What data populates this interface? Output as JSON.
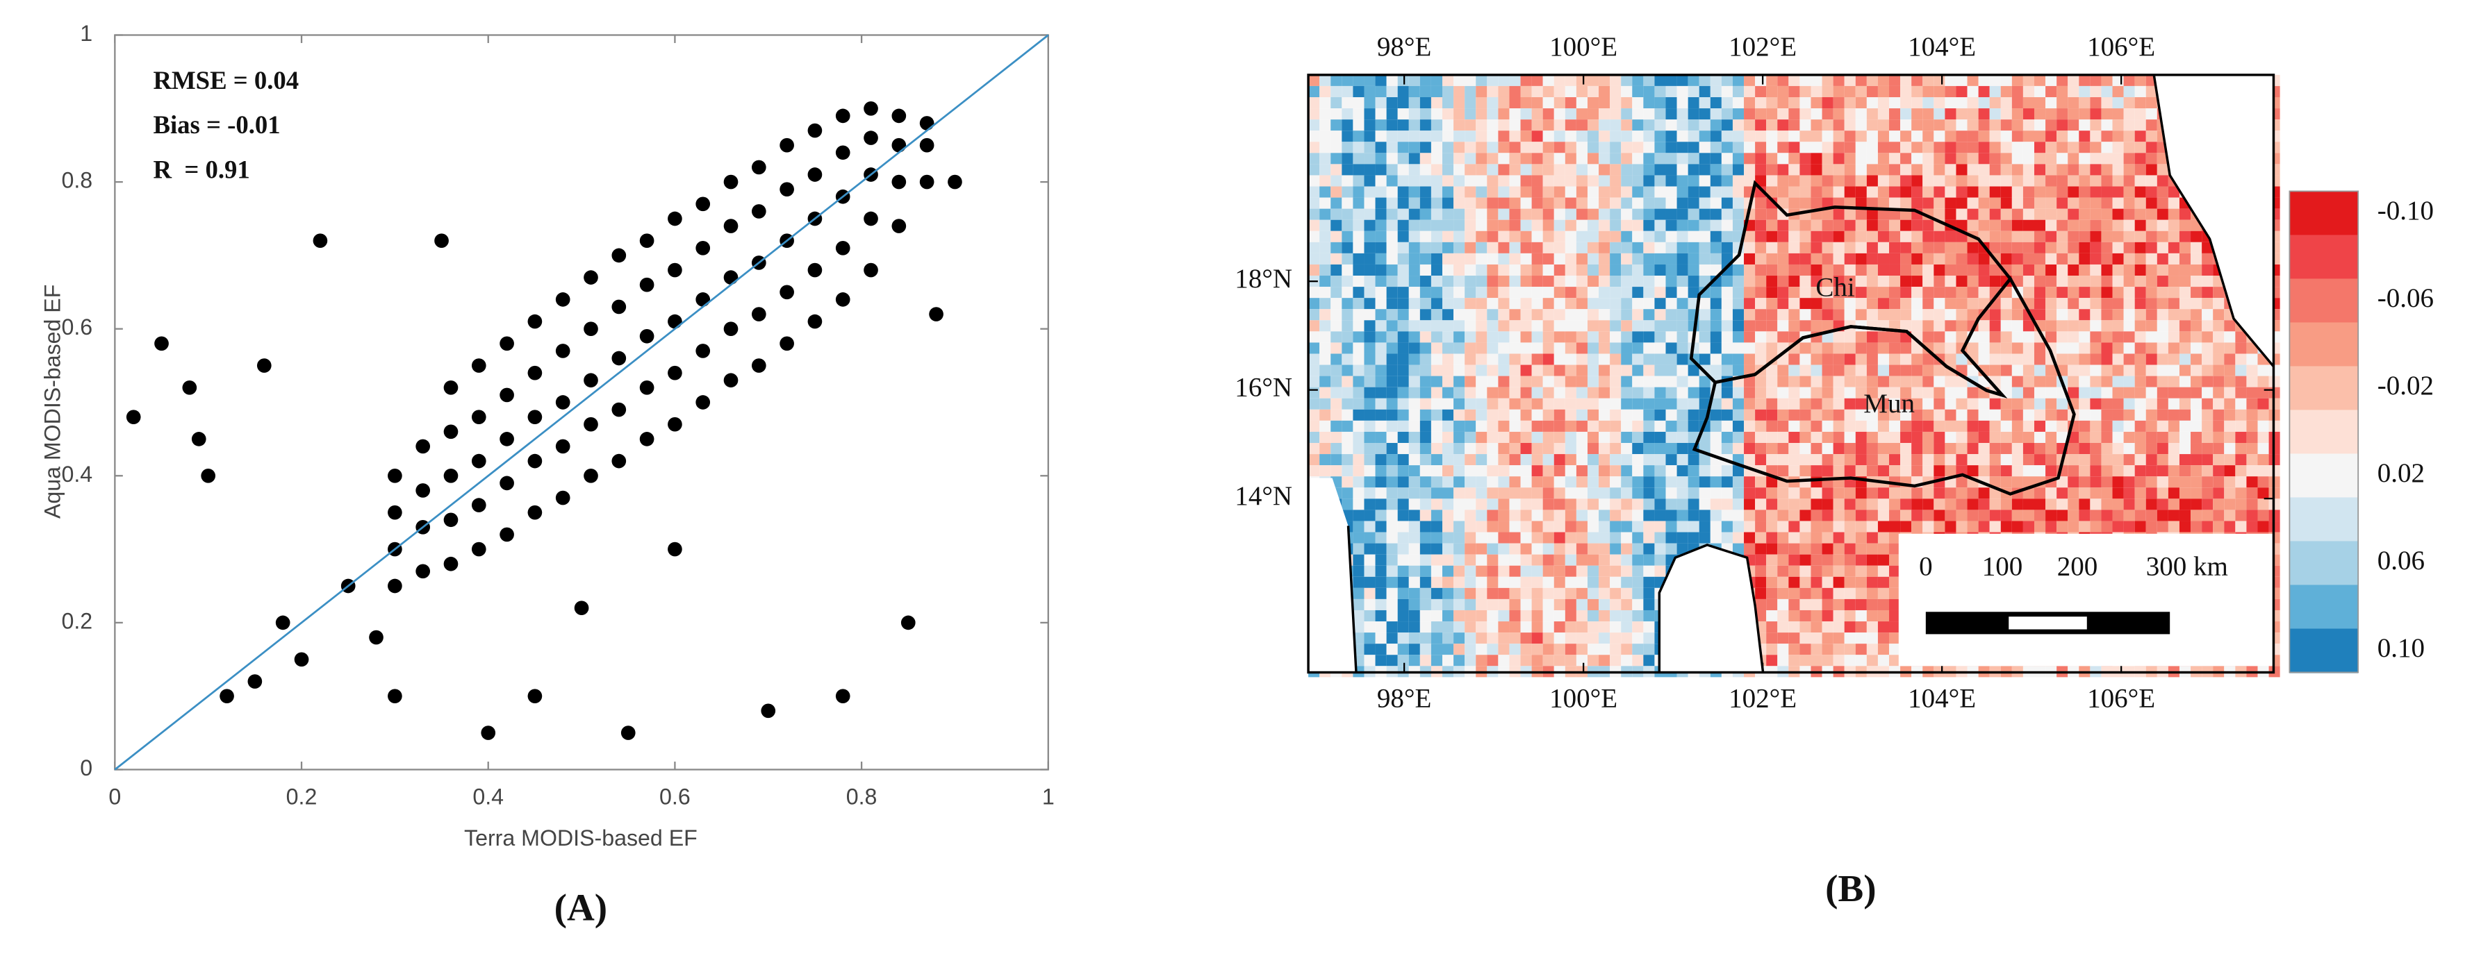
{
  "chart_data": [
    {
      "type": "scatter",
      "panel_label": "(A)",
      "x_label": "Terra MODIS-based EF",
      "y_label": "Aqua MODIS-based EF",
      "annotations": [
        "RMSE = 0.04",
        "Bias = -0.01",
        "R  = 0.91"
      ],
      "xlim": [
        0,
        1
      ],
      "ylim": [
        0,
        1
      ],
      "xticks": [
        0,
        0.2,
        0.4,
        0.6,
        0.8,
        1
      ],
      "yticks": [
        0,
        0.2,
        0.4,
        0.6,
        0.8,
        1
      ],
      "point_color": "#000000",
      "line_color": "#3b8fc4",
      "series": [
        {
          "name": null,
          "x": [
            0.3,
            0.3,
            0.3,
            0.3,
            0.33,
            0.33,
            0.33,
            0.33,
            0.36,
            0.36,
            0.36,
            0.36,
            0.36,
            0.39,
            0.39,
            0.39,
            0.39,
            0.39,
            0.42,
            0.42,
            0.42,
            0.42,
            0.42,
            0.45,
            0.45,
            0.45,
            0.45,
            0.45,
            0.48,
            0.48,
            0.48,
            0.48,
            0.48,
            0.51,
            0.51,
            0.51,
            0.51,
            0.51,
            0.54,
            0.54,
            0.54,
            0.54,
            0.54,
            0.57,
            0.57,
            0.57,
            0.57,
            0.57,
            0.6,
            0.6,
            0.6,
            0.6,
            0.6,
            0.63,
            0.63,
            0.63,
            0.63,
            0.63,
            0.66,
            0.66,
            0.66,
            0.66,
            0.66,
            0.69,
            0.69,
            0.69,
            0.69,
            0.69,
            0.72,
            0.72,
            0.72,
            0.72,
            0.72,
            0.75,
            0.75,
            0.75,
            0.75,
            0.75,
            0.78,
            0.78,
            0.78,
            0.78,
            0.78,
            0.81,
            0.81,
            0.81,
            0.81,
            0.81,
            0.84,
            0.84,
            0.84,
            0.84,
            0.87,
            0.87,
            0.87,
            0.05,
            0.08,
            0.09,
            0.16,
            0.22,
            0.12,
            0.15,
            0.18,
            0.25,
            0.3,
            0.45,
            0.55,
            0.7,
            0.78,
            0.35,
            0.6,
            0.5,
            0.9,
            0.88,
            0.02,
            0.2,
            0.28,
            0.4,
            0.85,
            0.1
          ],
          "y": [
            0.25,
            0.3,
            0.35,
            0.4,
            0.27,
            0.33,
            0.38,
            0.44,
            0.28,
            0.34,
            0.4,
            0.46,
            0.52,
            0.3,
            0.36,
            0.42,
            0.48,
            0.55,
            0.32,
            0.39,
            0.45,
            0.51,
            0.58,
            0.35,
            0.42,
            0.48,
            0.54,
            0.61,
            0.37,
            0.44,
            0.5,
            0.57,
            0.64,
            0.4,
            0.47,
            0.53,
            0.6,
            0.67,
            0.42,
            0.49,
            0.56,
            0.63,
            0.7,
            0.45,
            0.52,
            0.59,
            0.66,
            0.72,
            0.47,
            0.54,
            0.61,
            0.68,
            0.75,
            0.5,
            0.57,
            0.64,
            0.71,
            0.77,
            0.53,
            0.6,
            0.67,
            0.74,
            0.8,
            0.55,
            0.62,
            0.69,
            0.76,
            0.82,
            0.58,
            0.65,
            0.72,
            0.79,
            0.85,
            0.61,
            0.68,
            0.75,
            0.81,
            0.87,
            0.64,
            0.71,
            0.78,
            0.84,
            0.89,
            0.68,
            0.75,
            0.81,
            0.86,
            0.9,
            0.74,
            0.8,
            0.85,
            0.89,
            0.8,
            0.85,
            0.88,
            0.58,
            0.52,
            0.45,
            0.55,
            0.72,
            0.1,
            0.12,
            0.2,
            0.25,
            0.1,
            0.1,
            0.05,
            0.08,
            0.1,
            0.72,
            0.3,
            0.22,
            0.8,
            0.62,
            0.48,
            0.15,
            0.18,
            0.05,
            0.2,
            0.4
          ]
        }
      ]
    },
    {
      "type": "map",
      "panel_label": "(B)",
      "xlim": [
        96.93,
        107.7
      ],
      "ylim": [
        10.8,
        21.8
      ],
      "xticks": [
        {
          "value": 98,
          "label": "98°E"
        },
        {
          "value": 100,
          "label": "100°E"
        },
        {
          "value": 102,
          "label": "102°E"
        },
        {
          "value": 104,
          "label": "104°E"
        },
        {
          "value": 106,
          "label": "106°E"
        }
      ],
      "yticks": [
        {
          "value": 14,
          "label": "14°N"
        },
        {
          "value": 16,
          "label": "16°N"
        },
        {
          "value": 18,
          "label": "18°N"
        }
      ],
      "region_labels": [
        "Chi",
        "Mun"
      ],
      "scale_bar_labels": [
        "0",
        "100",
        "200",
        "300 km"
      ],
      "colorbar": {
        "clim": [
          -0.11,
          0.11
        ],
        "colors": [
          "#e31a1c",
          "#ef4448",
          "#f4776a",
          "#f89c84",
          "#fbbfaa",
          "#fde0d6",
          "#f5f5f5",
          "#d1e5f0",
          "#a6d1e6",
          "#5fb0d8",
          "#1f80bc"
        ],
        "ticks": [
          {
            "value": -0.1,
            "label": "-0.10"
          },
          {
            "value": -0.06,
            "label": "-0.06"
          },
          {
            "value": -0.02,
            "label": "-0.02"
          },
          0.02,
          0.06,
          {
            "value": 0.1,
            "label": "0.10"
          }
        ]
      }
    }
  ]
}
